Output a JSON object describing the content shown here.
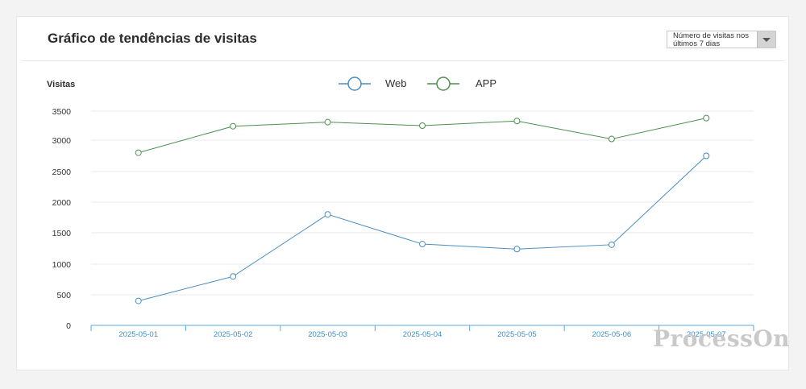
{
  "card": {
    "title": "Gráfico de tendências de visitas",
    "range_select": {
      "value": "Número de visitas nos últimos 7 dias"
    }
  },
  "watermark": "ProcessOn",
  "chart_data": {
    "type": "line",
    "ylabel": "Visitas",
    "x": [
      "2025-05-01",
      "2025-05-02",
      "2025-05-03",
      "2025-05-04",
      "2025-05-05",
      "2025-05-06",
      "2025-05-07"
    ],
    "yticks": [
      0,
      500,
      1000,
      1500,
      2000,
      2500,
      3000,
      3500
    ],
    "grid": true,
    "legend": "top-center",
    "series": [
      {
        "name": "Web",
        "color": "#4a8ec2",
        "values": [
          400,
          800,
          1800,
          1320,
          1240,
          1310,
          2750
        ]
      },
      {
        "name": "APP",
        "color": "#4e8f4e",
        "values": [
          2800,
          3240,
          3310,
          3250,
          3330,
          3020,
          3380
        ]
      }
    ]
  }
}
